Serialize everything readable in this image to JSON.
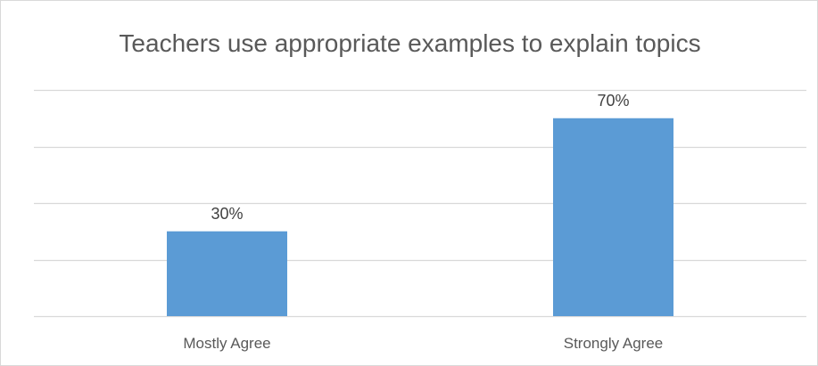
{
  "chart_data": {
    "type": "bar",
    "title": "Teachers use appropriate examples to explain topics",
    "categories": [
      "Mostly Agree",
      "Strongly Agree"
    ],
    "values": [
      30,
      70
    ],
    "data_labels": [
      "30%",
      "70%"
    ],
    "ylim": [
      0,
      80
    ],
    "grid": true,
    "legend": "none",
    "bar_color": "#5b9bd5",
    "grid_color": "#d9d9d9"
  }
}
